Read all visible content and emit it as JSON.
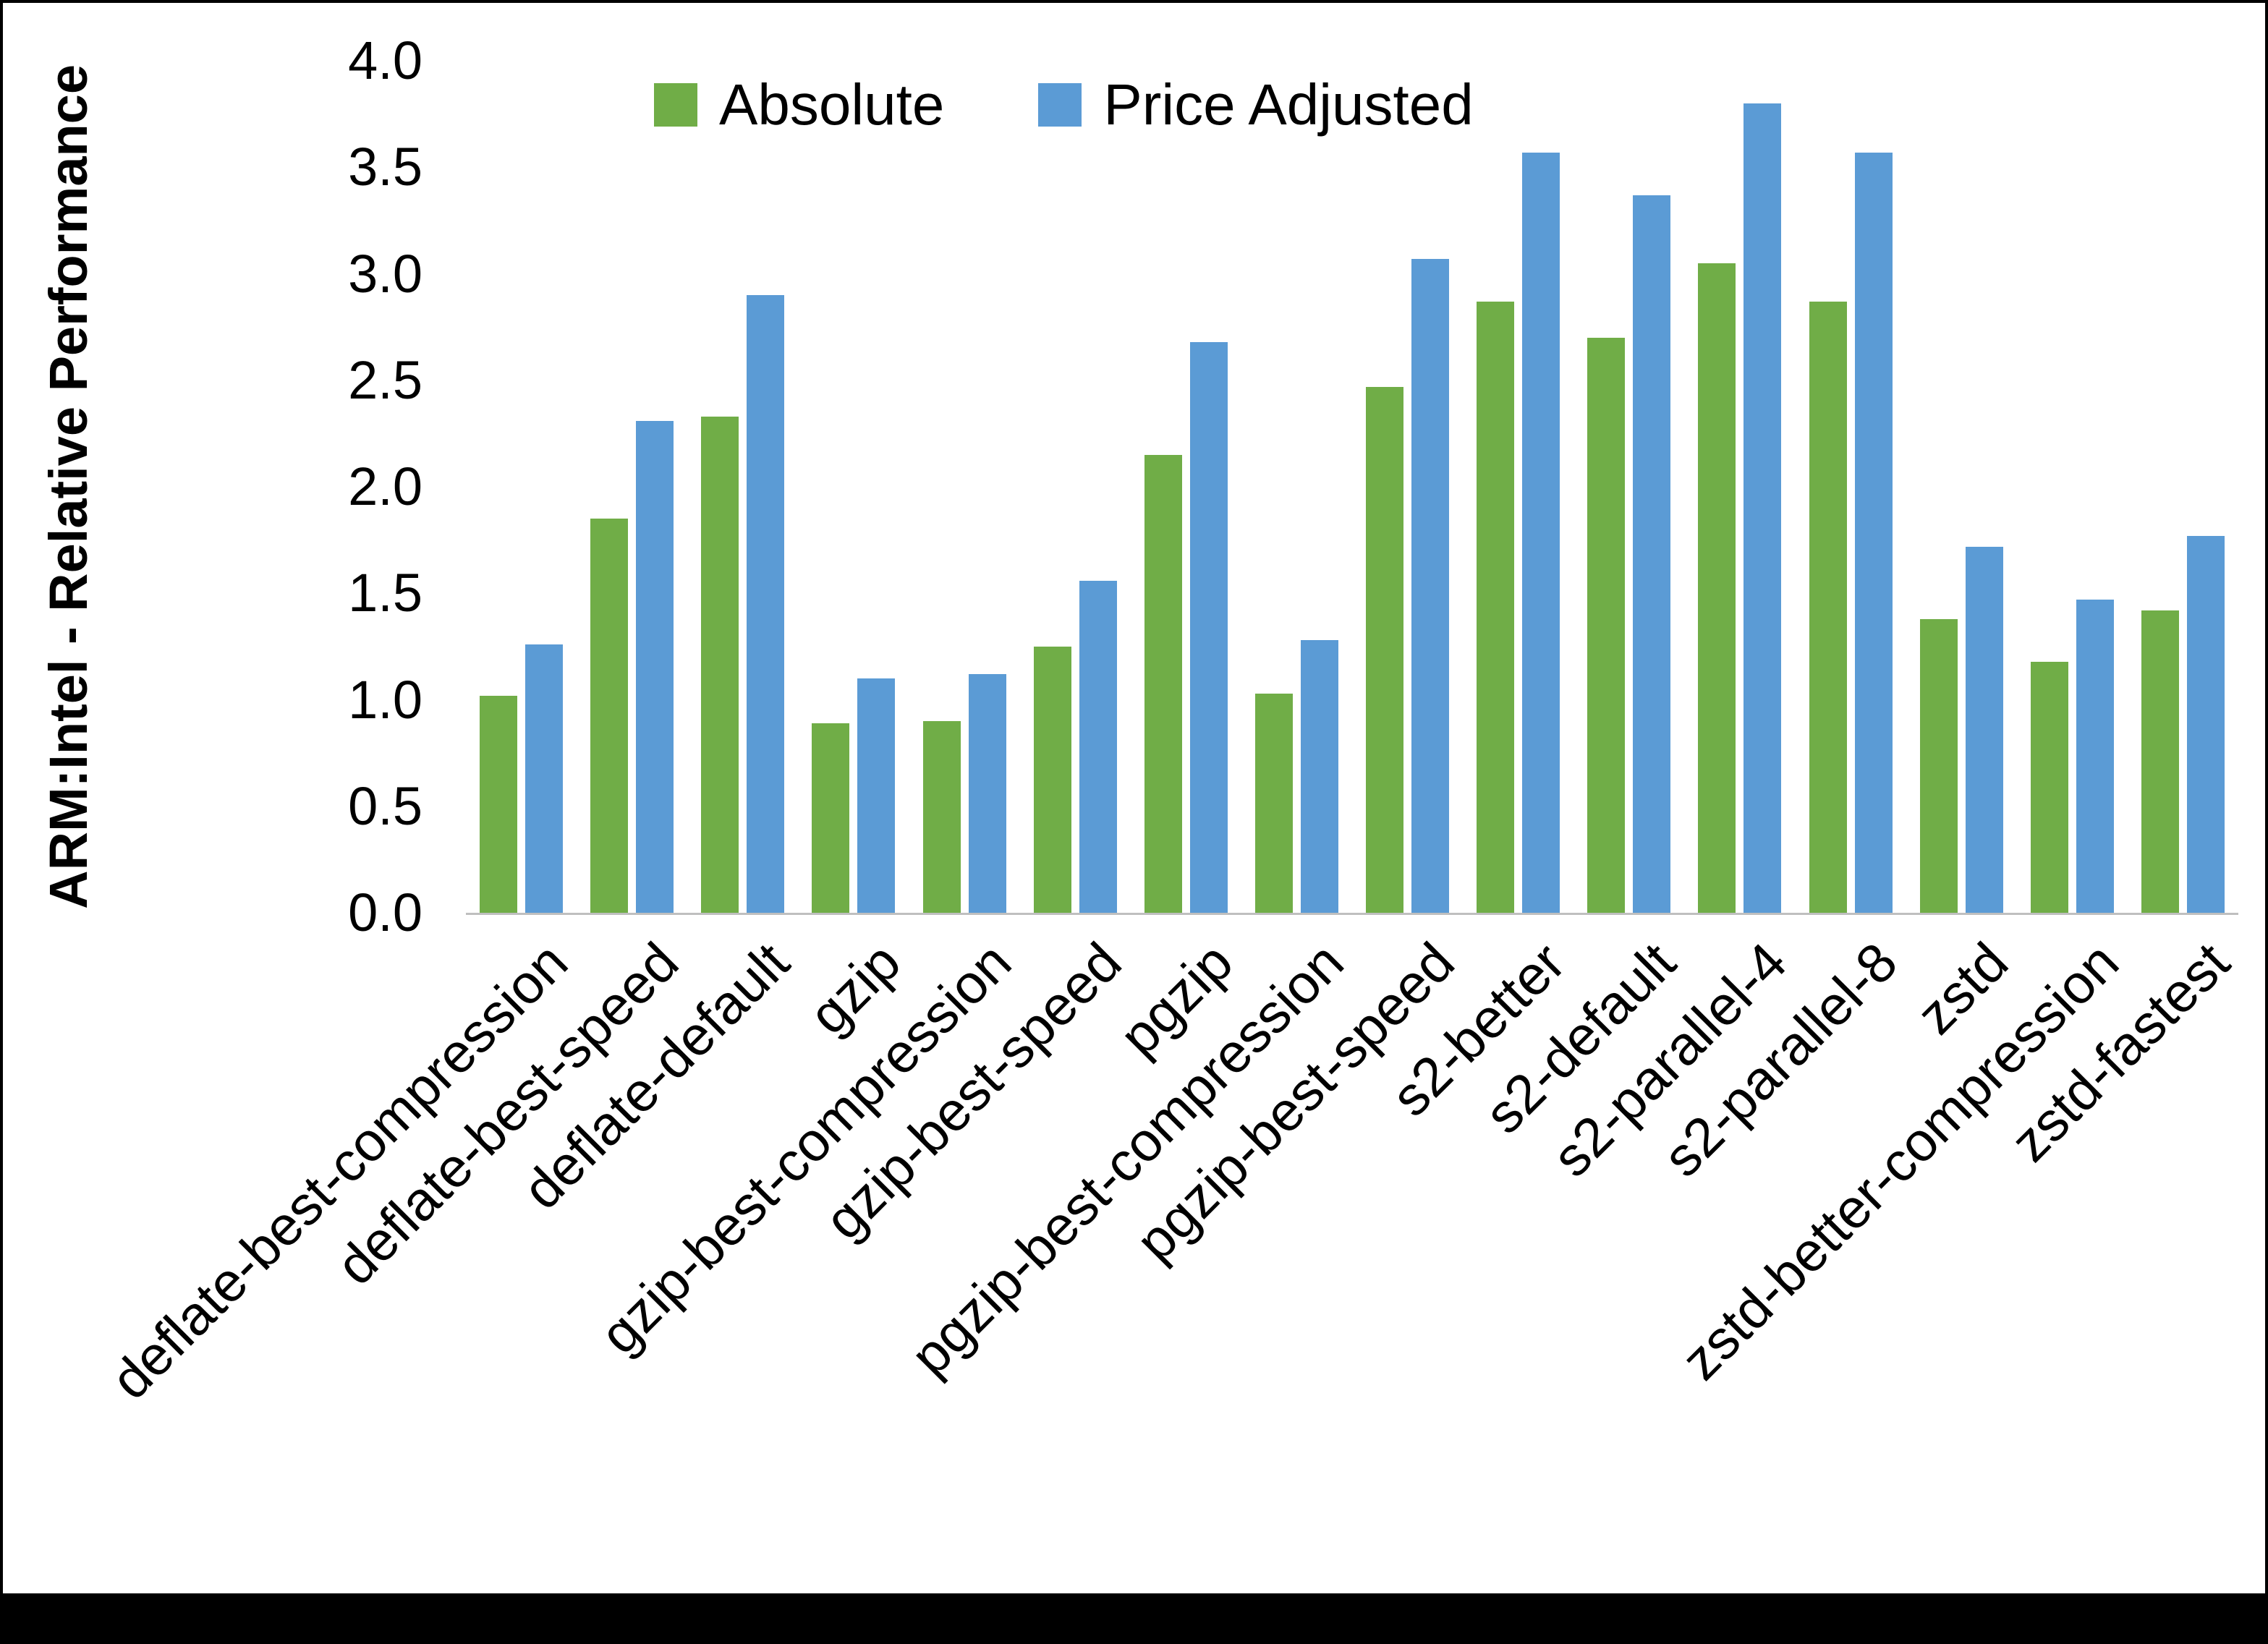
{
  "chart_data": {
    "type": "bar",
    "title": "",
    "xlabel": "",
    "ylabel": "ARM:Intel - Relative Performance",
    "ylim": [
      0.0,
      4.0
    ],
    "ytick_step": 0.5,
    "yticks": [
      "0.0",
      "0.5",
      "1.0",
      "1.5",
      "2.0",
      "2.5",
      "3.0",
      "3.5",
      "4.0"
    ],
    "grid": false,
    "legend_position": "top",
    "axis_line_color": "#BFBFBF",
    "background_color": "#FFFFFF",
    "categories": [
      "deflate-best-compression",
      "deflate-best-speed",
      "deflate-default",
      "gzip",
      "gzip-best-compression",
      "gzip-best-speed",
      "pgzip",
      "pgzip-best-compression",
      "pgzip-best-speed",
      "s2-better",
      "s2-default",
      "s2-parallel-4",
      "s2-parallel-8",
      "zstd",
      "zstd-better-compression",
      "zstd-fastest"
    ],
    "series": [
      {
        "name": "Absolute",
        "color": "#70AD47",
        "values": [
          1.02,
          1.85,
          2.33,
          0.89,
          0.9,
          1.25,
          2.15,
          1.03,
          2.47,
          2.87,
          2.7,
          3.05,
          2.87,
          1.38,
          1.18,
          1.42
        ]
      },
      {
        "name": "Price Adjusted",
        "color": "#5B9BD5",
        "values": [
          1.26,
          2.31,
          2.9,
          1.1,
          1.12,
          1.56,
          2.68,
          1.28,
          3.07,
          3.57,
          3.37,
          3.8,
          3.57,
          1.72,
          1.47,
          1.77
        ]
      }
    ]
  }
}
